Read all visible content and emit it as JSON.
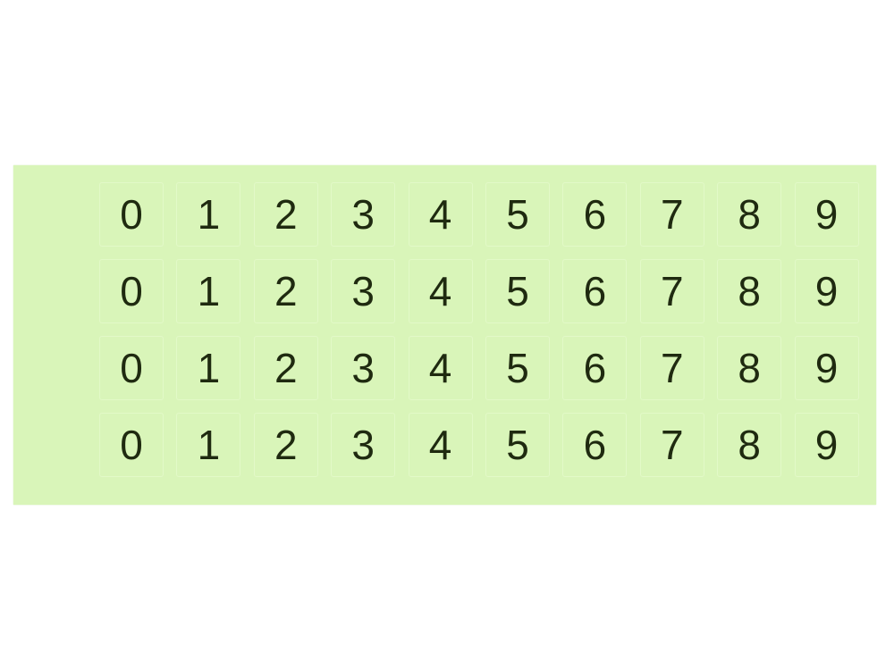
{
  "sheet": {
    "background_color": "#d9f5b9",
    "digit_color": "#1f2a10",
    "rows": [
      [
        "0",
        "1",
        "2",
        "3",
        "4",
        "5",
        "6",
        "7",
        "8",
        "9"
      ],
      [
        "0",
        "1",
        "2",
        "3",
        "4",
        "5",
        "6",
        "7",
        "8",
        "9"
      ],
      [
        "0",
        "1",
        "2",
        "3",
        "4",
        "5",
        "6",
        "7",
        "8",
        "9"
      ],
      [
        "0",
        "1",
        "2",
        "3",
        "4",
        "5",
        "6",
        "7",
        "8",
        "9"
      ]
    ]
  }
}
